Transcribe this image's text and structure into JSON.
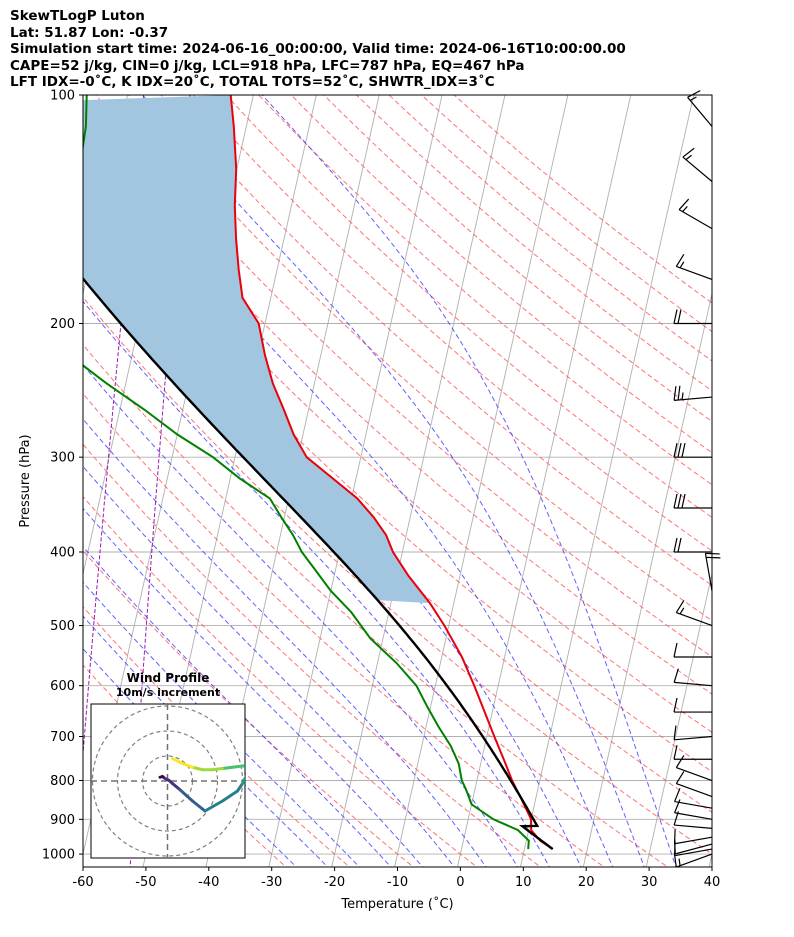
{
  "header": {
    "title": "SkewTLogP Luton",
    "location": "Lat: 51.87   Lon: -0.37",
    "times": "Simulation start time: 2024-06-16_00:00:00, Valid time: 2024-06-16T10:00:00.00",
    "indices_1": "CAPE=52 j/kg, CIN=0 j/kg, LCL=918 hPa, LFC=787 hPa, EQ=467 hPa",
    "indices_2": "LFT IDX=-0˚C, K IDX=20˚C, TOTAL TOTS=52˚C, SHWTR_IDX=3˚C"
  },
  "chart_data": {
    "type": "skewt-logp",
    "xlabel": "Temperature (˚C)",
    "ylabel": "Pressure (hPa)",
    "xlim": [
      -60,
      40
    ],
    "ylim": [
      1040,
      100
    ],
    "x_ticks": [
      -60,
      -50,
      -40,
      -30,
      -20,
      -10,
      0,
      10,
      20,
      30,
      40
    ],
    "y_ticks": [
      100,
      200,
      300,
      400,
      500,
      600,
      700,
      800,
      900,
      1000
    ],
    "grid": true,
    "colors": {
      "temperature": "#e8000b",
      "dewpoint": "#008000",
      "parcel": "#000000",
      "cape_fill": "#a3c6e0",
      "dry_adiabat": "#ff5a5a",
      "moist_adiabat": "#3a3aff",
      "mixing_ratio": "#9a1ab0",
      "isotherm": "#b0b0b0",
      "grid": "#b0b0b0"
    },
    "temperature_profile": {
      "pressure": [
        985,
        960,
        930,
        900,
        850,
        800,
        750,
        700,
        650,
        600,
        550,
        500,
        467,
        430,
        400,
        380,
        360,
        340,
        320,
        300,
        280,
        260,
        240,
        220,
        200,
        185,
        170,
        155,
        140,
        125,
        110,
        100
      ],
      "temp_c": [
        14.5,
        12.2,
        10.4,
        10.0,
        7.9,
        5.6,
        3.5,
        1.2,
        -1.2,
        -3.8,
        -6.8,
        -10.7,
        -13.8,
        -18.2,
        -21.5,
        -23.2,
        -25.8,
        -29.1,
        -33.7,
        -38.6,
        -41.5,
        -43.9,
        -46.6,
        -48.9,
        -51.0,
        -54.5,
        -56.1,
        -57.6,
        -59.0,
        -60.1,
        -62.0,
        -63.6
      ]
    },
    "dewpoint_profile": {
      "pressure": [
        985,
        960,
        930,
        900,
        860,
        820,
        800,
        760,
        720,
        680,
        640,
        600,
        560,
        520,
        480,
        450,
        420,
        400,
        380,
        360,
        340,
        320,
        300,
        280,
        260,
        240,
        220,
        200,
        190,
        180,
        165,
        150,
        140,
        125,
        110,
        100
      ],
      "dewpoint_c": [
        10.6,
        10.4,
        8.3,
        4.0,
        0.0,
        -1.5,
        -2.4,
        -3.5,
        -5.4,
        -8.0,
        -10.5,
        -13.0,
        -17.0,
        -22.0,
        -26.0,
        -30.0,
        -33.5,
        -36.0,
        -38.0,
        -40.5,
        -43.0,
        -48.5,
        -53.5,
        -60.0,
        -66.0,
        -73.0,
        -80.0,
        -85.0,
        -83.0,
        -83.0,
        -84.0,
        -84.5,
        -84.5,
        -85.0,
        -85.5,
        -86.5
      ]
    },
    "parcel_surface": {
      "pressure_hpa": 985,
      "temp_c": 14.5
    },
    "cape_shading": {
      "from_hpa": 467,
      "to_hpa": 100
    },
    "isotherm_step_c": 10,
    "dry_adiabats_theta_c": [
      -30,
      -20,
      -10,
      0,
      10,
      20,
      30,
      40,
      50,
      60,
      70,
      80,
      90,
      100,
      110,
      120,
      130,
      140,
      150,
      160,
      170,
      180,
      190,
      200
    ],
    "moist_adiabats_tsurface_c": [
      -25,
      -20,
      -15,
      -10,
      -5,
      0,
      5,
      10,
      15,
      20,
      25,
      30,
      35
    ],
    "mixing_ratio_lines_gkg": [
      0.01,
      0.03
    ],
    "wind_barbs": {
      "units": "knots",
      "pressure_hpa": [
        1000,
        985,
        970,
        950,
        925,
        900,
        870,
        840,
        800,
        750,
        700,
        650,
        600,
        550,
        500,
        450,
        400,
        350,
        300,
        250,
        200,
        175,
        150,
        130,
        110
      ],
      "speed_kt": [
        15,
        12,
        12,
        12,
        10,
        10,
        10,
        10,
        10,
        10,
        10,
        10,
        10,
        10,
        15,
        20,
        20,
        30,
        30,
        25,
        20,
        15,
        15,
        15,
        15
      ],
      "direction_deg": [
        250,
        260,
        255,
        260,
        275,
        280,
        280,
        290,
        290,
        270,
        265,
        270,
        275,
        270,
        290,
        350,
        270,
        270,
        270,
        265,
        270,
        290,
        300,
        310,
        320
      ]
    },
    "wind_profile_inset": {
      "title": "Wind Profile",
      "subtitle": "10m/s increment",
      "rings_ms": [
        10,
        20,
        30
      ],
      "hodograph_u_ms": [
        -3.0,
        -2.0,
        -1.0,
        0.5,
        2.0,
        5.0,
        10.0,
        15.0,
        22.0,
        28.0,
        30.0,
        33.0,
        32.0,
        30.0,
        26.0,
        22.0,
        18.0,
        14.0,
        10.0,
        6.0,
        2.0
      ],
      "hodograph_v_ms": [
        1.5,
        1.8,
        1.0,
        0.3,
        -1.0,
        -3.5,
        -8.0,
        -12.0,
        -8.0,
        -4.0,
        -1.0,
        5.0,
        6.0,
        6.0,
        5.5,
        5.0,
        4.5,
        4.5,
        5.5,
        7.0,
        9.0
      ],
      "colormap": "viridis"
    }
  }
}
